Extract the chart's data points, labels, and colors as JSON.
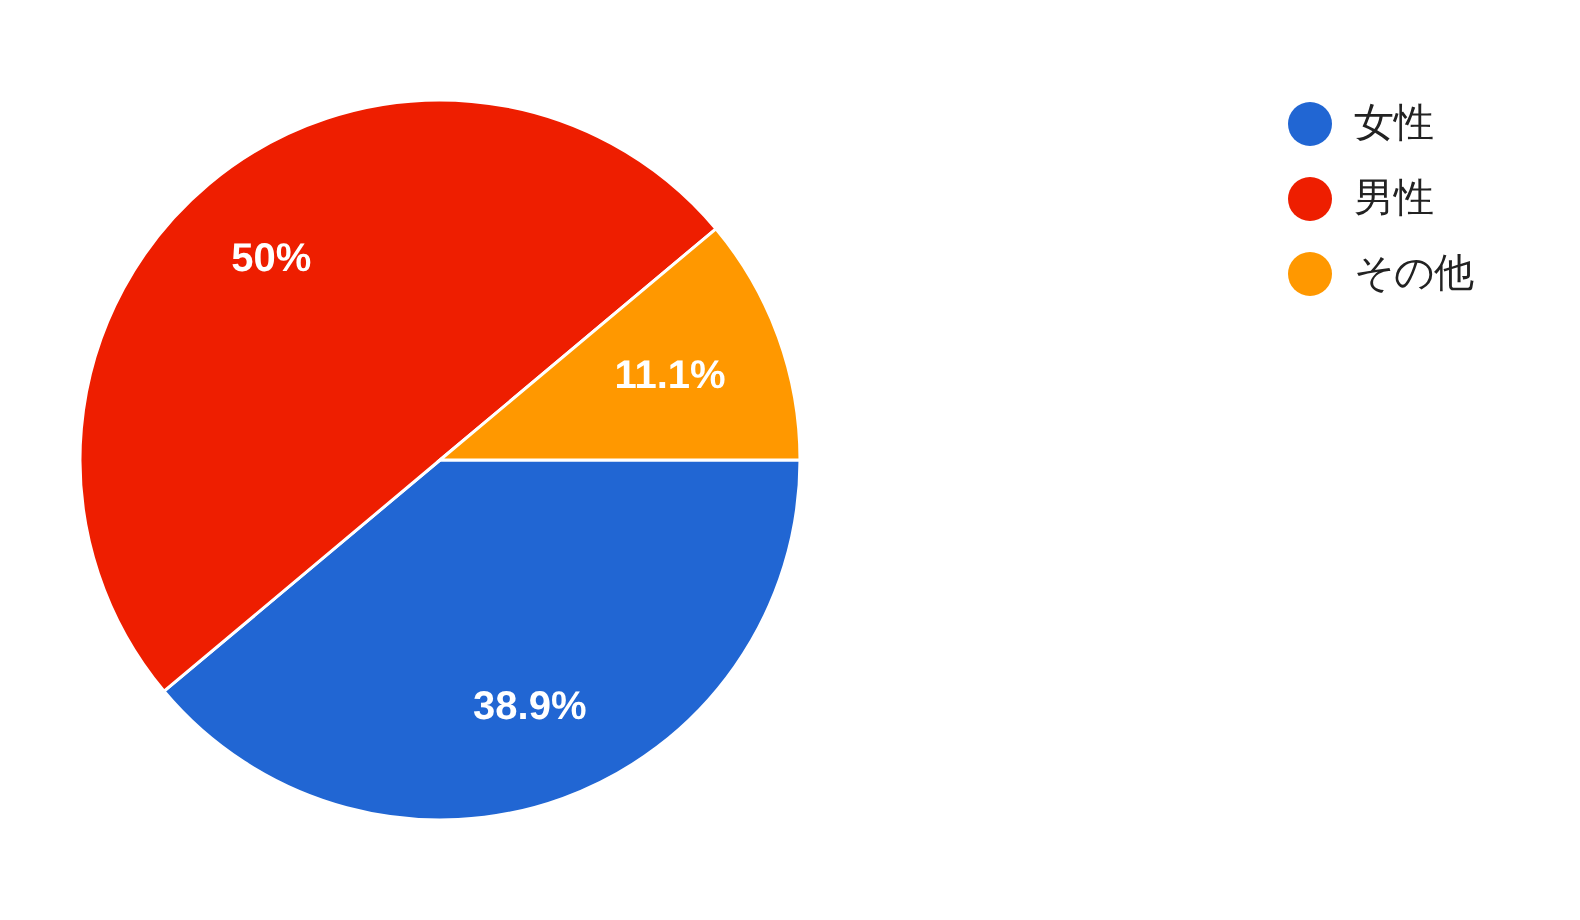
{
  "chart_data": {
    "type": "pie",
    "categories": [
      "女性",
      "男性",
      "その他"
    ],
    "values": [
      38.9,
      50,
      11.1
    ],
    "colors": [
      "#2166d3",
      "#ee1e00",
      "#ff9800"
    ],
    "value_labels": [
      "38.9%",
      "50%",
      "11.1%"
    ],
    "legend": "top right"
  }
}
